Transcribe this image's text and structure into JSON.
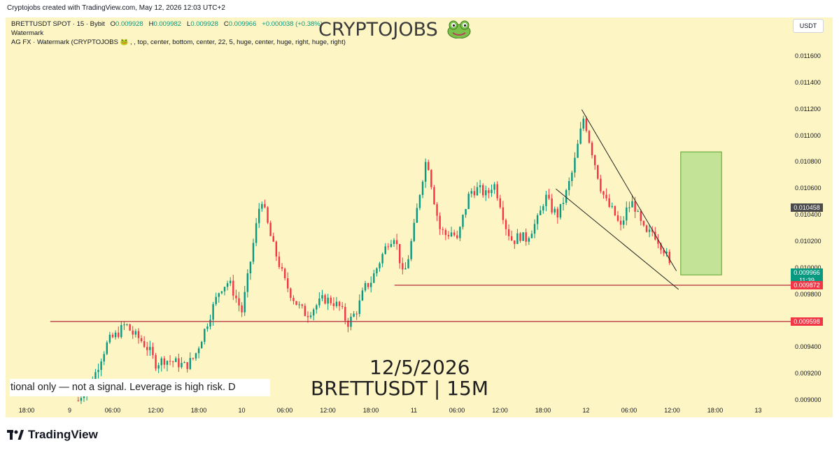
{
  "header": {
    "created_text": "Cryptojobs created with TradingView.com, May 12, 2026 12:03 UTC+2"
  },
  "legend": {
    "symbol": "BRETTUSDT SPOT · 15 · Bybit",
    "open_label": "O",
    "open": "0.009928",
    "high_label": "H",
    "high": "0.009982",
    "low_label": "L",
    "low": "0.009928",
    "close_label": "C",
    "close": "0.009966",
    "change": "+0.000038 (+0.38%)",
    "indicator_1": "Watermark",
    "indicator_2": "AG FX · Watermark (CRYPTOJOBS 🐸 , , top, center, bottom, center, 22, 5, huge, center, huge, right, huge, right)"
  },
  "watermark": {
    "title": "CRYPTOJOBS",
    "date": "12/5/2026",
    "pair": "BRETTUSDT | 15M",
    "ticker_text": "tional only — not a signal. Leverage is high risk. D"
  },
  "currency_button": "USDT",
  "footer": {
    "brand": "TradingView"
  },
  "colors": {
    "background": "#fdf5c4",
    "bull": "#089981",
    "bear": "#f23645",
    "support_line": "#b2293b",
    "target_box": "#b9e08e",
    "current_price": "#089981",
    "level_red": "#f23645",
    "level_dark": "#4a4a4a"
  },
  "chart_data": {
    "type": "candlestick",
    "symbol": "BRETTUSDT",
    "interval": "15",
    "exchange": "Bybit",
    "ylim": [
      0.009,
      0.01176
    ],
    "y_ticks": [
      "0.011600",
      "0.011400",
      "0.011200",
      "0.011000",
      "0.010800",
      "0.010600",
      "0.010400",
      "0.010200",
      "0.010000",
      "0.009800",
      "0.009600",
      "0.009400",
      "0.009200",
      "0.009000"
    ],
    "x_ticks": [
      {
        "label": "18:00",
        "t": 0
      },
      {
        "label": "9",
        "t": 1
      },
      {
        "label": "06:00",
        "t": 2
      },
      {
        "label": "12:00",
        "t": 3
      },
      {
        "label": "18:00",
        "t": 4
      },
      {
        "label": "10",
        "t": 5
      },
      {
        "label": "06:00",
        "t": 6
      },
      {
        "label": "12:00",
        "t": 7
      },
      {
        "label": "18:00",
        "t": 8
      },
      {
        "label": "11",
        "t": 9
      },
      {
        "label": "06:00",
        "t": 10
      },
      {
        "label": "12:00",
        "t": 11
      },
      {
        "label": "18:00",
        "t": 12
      },
      {
        "label": "12",
        "t": 13
      },
      {
        "label": "06:00",
        "t": 14
      },
      {
        "label": "12:00",
        "t": 15
      },
      {
        "label": "18:00",
        "t": 16
      },
      {
        "label": "13",
        "t": 17
      }
    ],
    "price_path": [
      [
        1.2,
        0.009
      ],
      [
        1.3,
        0.00906
      ],
      [
        1.45,
        0.00912
      ],
      [
        1.6,
        0.00921
      ],
      [
        1.75,
        0.00934
      ],
      [
        1.9,
        0.00945
      ],
      [
        2.1,
        0.0095
      ],
      [
        2.3,
        0.00958
      ],
      [
        2.45,
        0.00951
      ],
      [
        2.65,
        0.00946
      ],
      [
        2.85,
        0.00938
      ],
      [
        3.0,
        0.00928
      ],
      [
        3.2,
        0.00931
      ],
      [
        3.45,
        0.00929
      ],
      [
        3.7,
        0.00926
      ],
      [
        3.9,
        0.00933
      ],
      [
        4.1,
        0.0095
      ],
      [
        4.3,
        0.00968
      ],
      [
        4.5,
        0.00985
      ],
      [
        4.7,
        0.0099
      ],
      [
        4.9,
        0.00975
      ],
      [
        5.0,
        0.00967
      ],
      [
        5.15,
        0.00995
      ],
      [
        5.3,
        0.01025
      ],
      [
        5.45,
        0.01055
      ],
      [
        5.55,
        0.0104
      ],
      [
        5.7,
        0.0102
      ],
      [
        5.85,
        0.01005
      ],
      [
        6.0,
        0.0099
      ],
      [
        6.15,
        0.0098
      ],
      [
        6.3,
        0.00972
      ],
      [
        6.5,
        0.00965
      ],
      [
        6.7,
        0.00971
      ],
      [
        6.9,
        0.00977
      ],
      [
        7.1,
        0.00975
      ],
      [
        7.3,
        0.0097
      ],
      [
        7.45,
        0.00958
      ],
      [
        7.55,
        0.00962
      ],
      [
        7.7,
        0.0097
      ],
      [
        7.85,
        0.00985
      ],
      [
        8.0,
        0.0099
      ],
      [
        8.2,
        0.01005
      ],
      [
        8.4,
        0.0102
      ],
      [
        8.55,
        0.01025
      ],
      [
        8.65,
        0.0101
      ],
      [
        8.75,
        0.00993
      ],
      [
        8.85,
        0.01005
      ],
      [
        9.0,
        0.0103
      ],
      [
        9.15,
        0.0106
      ],
      [
        9.3,
        0.01085
      ],
      [
        9.45,
        0.01055
      ],
      [
        9.6,
        0.0103
      ],
      [
        9.75,
        0.01025
      ],
      [
        9.9,
        0.01028
      ],
      [
        10.0,
        0.0102
      ],
      [
        10.15,
        0.0104
      ],
      [
        10.3,
        0.01058
      ],
      [
        10.5,
        0.0106
      ],
      [
        10.7,
        0.01055
      ],
      [
        10.85,
        0.01065
      ],
      [
        11.0,
        0.0105
      ],
      [
        11.15,
        0.0103
      ],
      [
        11.3,
        0.0102
      ],
      [
        11.45,
        0.01025
      ],
      [
        11.6,
        0.01022
      ],
      [
        11.75,
        0.0103
      ],
      [
        11.9,
        0.01038
      ],
      [
        12.05,
        0.01055
      ],
      [
        12.2,
        0.01045
      ],
      [
        12.35,
        0.0104
      ],
      [
        12.55,
        0.01058
      ],
      [
        12.7,
        0.01075
      ],
      [
        12.85,
        0.011
      ],
      [
        12.95,
        0.01115
      ],
      [
        13.05,
        0.011
      ],
      [
        13.2,
        0.0108
      ],
      [
        13.35,
        0.0106
      ],
      [
        13.5,
        0.01048
      ],
      [
        13.65,
        0.01042
      ],
      [
        13.8,
        0.0103
      ],
      [
        13.95,
        0.01045
      ],
      [
        14.1,
        0.0105
      ],
      [
        14.25,
        0.01035
      ],
      [
        14.4,
        0.01025
      ],
      [
        14.55,
        0.01028
      ],
      [
        14.7,
        0.0102
      ],
      [
        14.85,
        0.01012
      ],
      [
        15.0,
        0.00995
      ]
    ],
    "price_labels": [
      {
        "value": "0.010458",
        "price": 0.010458,
        "color": "#4a4a4a"
      },
      {
        "value": "0.009966",
        "price": 0.009966,
        "color": "#089981"
      },
      {
        "value": "11:39",
        "price": 0.009908,
        "color": "#089981"
      },
      {
        "value": "0.009872",
        "price": 0.009872,
        "color": "#f23645"
      },
      {
        "value": "0.009598",
        "price": 0.009598,
        "color": "#f23645"
      }
    ],
    "horizontal_lines": [
      {
        "price": 0.009598,
        "t_from": 0.55,
        "t_to": 17.9
      },
      {
        "price": 0.009872,
        "t_from": 8.55,
        "t_to": 17.9
      }
    ],
    "trendlines": [
      {
        "t1": 12.9,
        "p1": 0.0112,
        "t2": 15.1,
        "p2": 0.00998
      },
      {
        "t1": 12.3,
        "p1": 0.0106,
        "t2": 15.15,
        "p2": 0.00984
      }
    ],
    "target_box": {
      "t1": 15.2,
      "t2": 16.15,
      "p_low": 0.00995,
      "p_high": 0.01088
    }
  }
}
